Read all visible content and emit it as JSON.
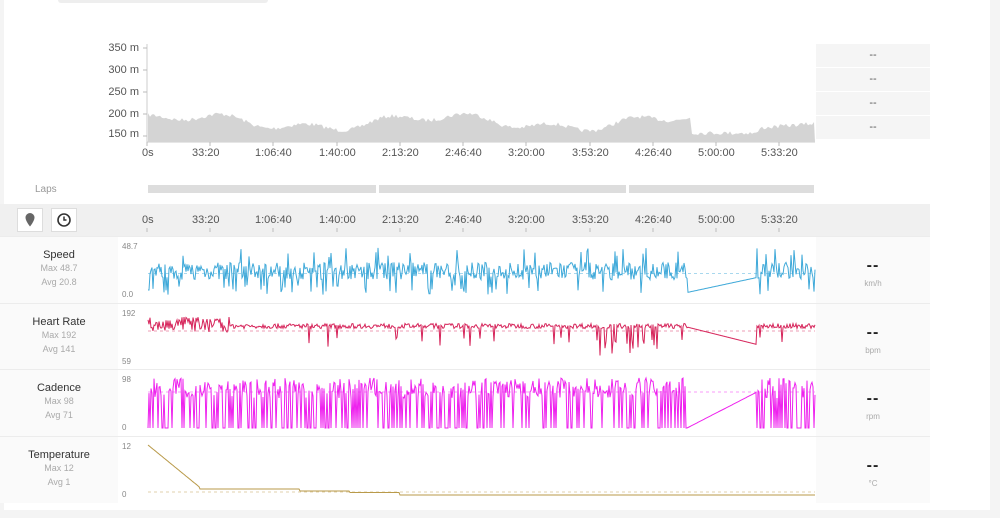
{
  "elevation": {
    "y_labels": [
      "350 m",
      "300 m",
      "250 m",
      "200 m",
      "150 m"
    ],
    "x_labels": [
      "0s",
      "33:20",
      "1:06:40",
      "1:40:00",
      "2:13:20",
      "2:46:40",
      "3:20:00",
      "3:53:20",
      "4:26:40",
      "5:00:00",
      "5:33:20"
    ],
    "side_values": [
      "--",
      "--",
      "--",
      "--"
    ]
  },
  "laps": {
    "label": "Laps"
  },
  "timeline": {
    "x_labels": [
      "0s",
      "33:20",
      "1:06:40",
      "1:40:00",
      "2:13:20",
      "2:46:40",
      "3:20:00",
      "3:53:20",
      "4:26:40",
      "5:00:00",
      "5:33:20"
    ]
  },
  "metrics": [
    {
      "name": "Speed",
      "max": "Max 48.7",
      "avg": "Avg 20.8",
      "ymax": "48.7",
      "ymin": "0.0",
      "value": "--",
      "unit": "km/h",
      "color": "#3fa9d9"
    },
    {
      "name": "Heart Rate",
      "max": "Max 192",
      "avg": "Avg 141",
      "ymax": "192",
      "ymin": "59",
      "value": "--",
      "unit": "bpm",
      "color": "#d6245a"
    },
    {
      "name": "Cadence",
      "max": "Max 98",
      "avg": "Avg 71",
      "ymax": "98",
      "ymin": "0",
      "value": "--",
      "unit": "rpm",
      "color": "#ee22ee"
    },
    {
      "name": "Temperature",
      "max": "Max 12",
      "avg": "Avg 1",
      "ymax": "12",
      "ymin": "0",
      "value": "--",
      "unit": "°C",
      "color": "#b99a4a"
    }
  ],
  "colors": {
    "elevation_fill": "#d4d4d4"
  }
}
